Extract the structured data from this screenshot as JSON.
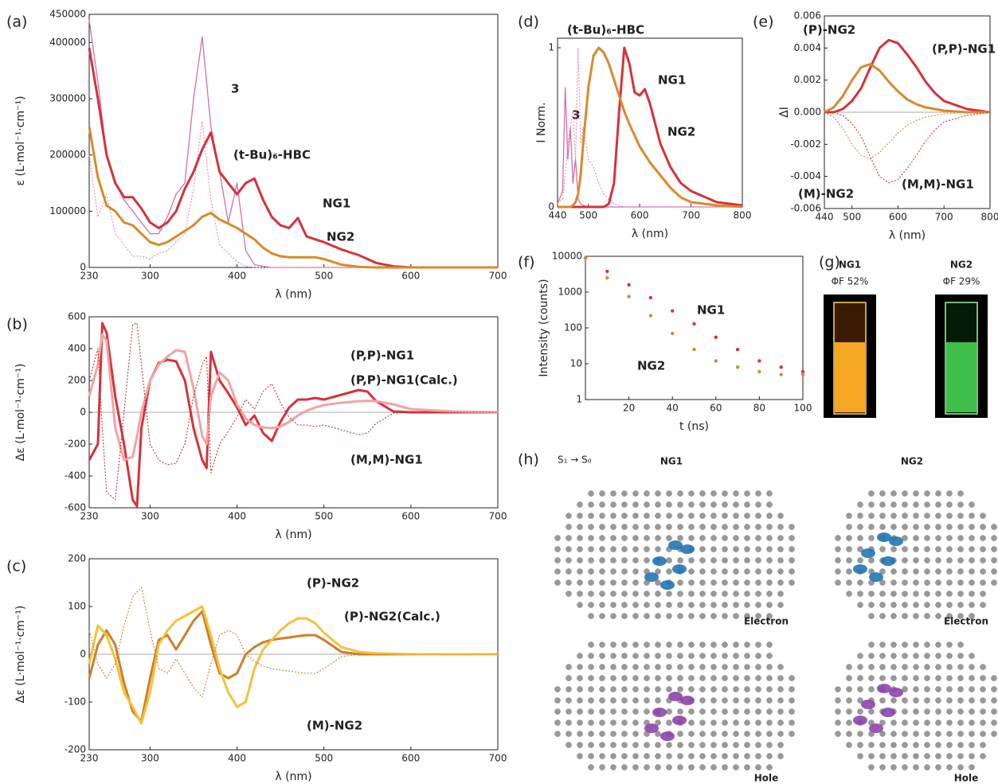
{
  "chart_data": [
    {
      "type": "line",
      "panel_label": "(a)",
      "xlabel": "λ (nm)",
      "ylabel": "ε (L·mol⁻¹·cm⁻¹)",
      "xlim": [
        230,
        700
      ],
      "xticks": [
        230,
        300,
        400,
        500,
        600,
        700
      ],
      "ylim": [
        0,
        450000
      ],
      "yticks": [
        0,
        100000,
        200000,
        300000,
        400000,
        450000
      ],
      "x": [
        230,
        240,
        250,
        260,
        270,
        280,
        290,
        300,
        310,
        320,
        330,
        340,
        350,
        360,
        370,
        380,
        390,
        400,
        410,
        420,
        430,
        440,
        450,
        460,
        470,
        480,
        490,
        500,
        520,
        540,
        560,
        580,
        600,
        700
      ],
      "series": [
        {
          "name": "3",
          "color": "#d16fa6",
          "style": "thin",
          "values": [
            440000,
            330000,
            200000,
            150000,
            120000,
            100000,
            80000,
            60000,
            60000,
            90000,
            130000,
            150000,
            300000,
            410000,
            250000,
            170000,
            80000,
            150000,
            30000,
            5000,
            2000,
            0,
            0,
            0,
            0,
            0,
            0,
            0,
            0,
            0,
            0,
            0,
            0,
            0
          ]
        },
        {
          "name": "(t-Bu)₆-HBC",
          "color": "#ea86b6",
          "style": "dotted",
          "values": [
            200000,
            90000,
            130000,
            60000,
            40000,
            20000,
            20000,
            15000,
            25000,
            30000,
            45000,
            60000,
            140000,
            260000,
            120000,
            40000,
            25000,
            10000,
            2000,
            0,
            0,
            0,
            0,
            0,
            0,
            0,
            0,
            0,
            0,
            0,
            0,
            0,
            0,
            0
          ]
        },
        {
          "name": "NG1",
          "color": "#d5323c",
          "style": "thick",
          "values": [
            390000,
            300000,
            200000,
            150000,
            125000,
            125000,
            105000,
            80000,
            70000,
            80000,
            100000,
            140000,
            170000,
            210000,
            240000,
            170000,
            150000,
            130000,
            150000,
            158000,
            120000,
            90000,
            75000,
            70000,
            88000,
            55000,
            50000,
            45000,
            32000,
            22000,
            8000,
            2000,
            0,
            0
          ]
        },
        {
          "name": "NG2",
          "color": "#d88a2c",
          "style": "thick",
          "values": [
            250000,
            160000,
            110000,
            100000,
            80000,
            75000,
            60000,
            45000,
            40000,
            45000,
            55000,
            65000,
            75000,
            90000,
            97000,
            85000,
            78000,
            70000,
            60000,
            50000,
            35000,
            25000,
            20000,
            18000,
            18000,
            18000,
            18000,
            15000,
            5000,
            1000,
            0,
            0,
            0,
            0
          ]
        }
      ]
    },
    {
      "type": "line",
      "panel_label": "(b)",
      "xlabel": "λ (nm)",
      "ylabel": "Δε (L·mol⁻¹·cm⁻¹)",
      "zero_line": true,
      "xlim": [
        230,
        700
      ],
      "xticks": [
        230,
        300,
        400,
        500,
        600,
        700
      ],
      "ylim": [
        -600,
        600
      ],
      "yticks": [
        -600,
        -400,
        -200,
        0,
        200,
        400,
        600
      ],
      "x": [
        230,
        240,
        245,
        250,
        260,
        270,
        280,
        285,
        290,
        300,
        310,
        320,
        330,
        340,
        350,
        360,
        365,
        370,
        380,
        390,
        400,
        410,
        420,
        430,
        440,
        450,
        460,
        470,
        480,
        490,
        500,
        520,
        540,
        550,
        560,
        580,
        600,
        650,
        700
      ],
      "series": [
        {
          "name": "(P,P)-NG1",
          "color": "#d5323c",
          "style": "thick",
          "values": [
            -300,
            -200,
            560,
            500,
            100,
            -200,
            -550,
            -590,
            -100,
            200,
            310,
            330,
            320,
            200,
            -100,
            -300,
            -350,
            380,
            200,
            120,
            30,
            -80,
            -20,
            -130,
            -180,
            -60,
            30,
            80,
            80,
            90,
            80,
            110,
            140,
            130,
            70,
            5,
            0,
            0,
            0
          ]
        },
        {
          "name": "(P,P)-NG1(Calc.)",
          "color": "#f2a3a3",
          "style": "thick",
          "values": [
            100,
            300,
            490,
            450,
            -100,
            -300,
            -280,
            -150,
            0,
            200,
            300,
            350,
            390,
            380,
            150,
            -150,
            -200,
            100,
            250,
            200,
            50,
            -40,
            -80,
            -95,
            -100,
            -90,
            -60,
            -20,
            10,
            30,
            45,
            60,
            70,
            72,
            70,
            50,
            20,
            5,
            0
          ]
        },
        {
          "name": "(M,M)-NG1",
          "color": "#b8323c",
          "style": "dotted",
          "values": [
            200,
            400,
            -100,
            -500,
            -550,
            0,
            550,
            560,
            300,
            -200,
            -300,
            -330,
            -320,
            -200,
            100,
            300,
            350,
            -380,
            -200,
            -120,
            -30,
            80,
            20,
            130,
            180,
            60,
            -30,
            -80,
            -80,
            -90,
            -80,
            -110,
            -140,
            -130,
            -70,
            -5,
            0,
            0,
            0
          ]
        }
      ]
    },
    {
      "type": "line",
      "panel_label": "(c)",
      "xlabel": "λ (nm)",
      "ylabel": "Δε (L·mol⁻¹·cm⁻¹)",
      "zero_line": true,
      "xlim": [
        230,
        700
      ],
      "xticks": [
        230,
        300,
        400,
        500,
        600,
        700
      ],
      "ylim": [
        -200,
        200
      ],
      "yticks": [
        -200,
        -100,
        0,
        100,
        200
      ],
      "x": [
        230,
        240,
        250,
        260,
        270,
        280,
        290,
        300,
        310,
        320,
        330,
        340,
        350,
        360,
        370,
        380,
        390,
        400,
        410,
        420,
        430,
        440,
        450,
        460,
        470,
        480,
        490,
        500,
        520,
        540,
        560,
        600,
        700
      ],
      "series": [
        {
          "name": "(P)-NG2",
          "color": "#d07e2a",
          "style": "thick",
          "values": [
            -50,
            20,
            50,
            20,
            -60,
            -120,
            -140,
            -50,
            30,
            40,
            10,
            40,
            70,
            90,
            20,
            -40,
            -50,
            -40,
            0,
            15,
            25,
            30,
            33,
            35,
            38,
            40,
            40,
            30,
            5,
            0,
            0,
            0,
            0
          ]
        },
        {
          "name": "(P)-NG2(Calc.)",
          "color": "#f2c33a",
          "style": "thick",
          "values": [
            -20,
            60,
            40,
            -10,
            -80,
            -110,
            -145,
            -80,
            20,
            50,
            70,
            80,
            90,
            100,
            40,
            -30,
            -80,
            -110,
            -100,
            -30,
            10,
            30,
            50,
            65,
            75,
            75,
            65,
            45,
            15,
            5,
            2,
            0,
            0
          ]
        },
        {
          "name": "(M)-NG2",
          "color": "#c9822f",
          "style": "dotted",
          "values": [
            50,
            -20,
            -50,
            -20,
            60,
            120,
            140,
            50,
            -30,
            -40,
            -10,
            -40,
            -70,
            -90,
            -20,
            40,
            50,
            40,
            0,
            -15,
            -25,
            -30,
            -33,
            -35,
            -38,
            -40,
            -40,
            -30,
            -5,
            0,
            0,
            0,
            0
          ]
        }
      ]
    },
    {
      "type": "line",
      "panel_label": "(d)",
      "xlabel": "λ (nm)",
      "ylabel": "I Norm.",
      "xlim": [
        440,
        800
      ],
      "xticks": [
        440,
        500,
        600,
        700,
        800
      ],
      "ylim": [
        0,
        1.06
      ],
      "yticks": [
        0,
        1
      ],
      "x": [
        440,
        450,
        455,
        460,
        465,
        470,
        475,
        480,
        485,
        490,
        500,
        510,
        520,
        530,
        540,
        550,
        560,
        570,
        580,
        590,
        600,
        610,
        620,
        640,
        660,
        680,
        700,
        750,
        800
      ],
      "series": [
        {
          "name": "3",
          "color": "#d16fa6",
          "style": "thin",
          "values": [
            0.02,
            0.1,
            0.75,
            0.3,
            0.5,
            0.15,
            0.3,
            0.05,
            0.02,
            0.01,
            0,
            0,
            0,
            0,
            0,
            0,
            0,
            0,
            0,
            0,
            0,
            0,
            0,
            0,
            0,
            0,
            0,
            0,
            0
          ]
        },
        {
          "name": "(t-Bu)₆-HBC",
          "color": "#ea86b6",
          "style": "dotted",
          "values": [
            0.02,
            0.05,
            0.2,
            0.4,
            0.5,
            0.6,
            0.3,
            1.0,
            0.4,
            0.5,
            0.3,
            0.25,
            0.15,
            0.08,
            0.05,
            0.02,
            0.01,
            0,
            0,
            0,
            0,
            0,
            0,
            0,
            0,
            0,
            0,
            0,
            0
          ]
        },
        {
          "name": "NG1",
          "color": "#d5323c",
          "style": "thick",
          "values": [
            0,
            0,
            0,
            0,
            0,
            0,
            0,
            0,
            0,
            0,
            0,
            0,
            0,
            0,
            0.02,
            0.15,
            0.6,
            1.0,
            0.9,
            0.72,
            0.7,
            0.74,
            0.65,
            0.4,
            0.25,
            0.15,
            0.1,
            0.03,
            0.01
          ]
        },
        {
          "name": "NG2",
          "color": "#d88a2c",
          "style": "thick",
          "values": [
            0,
            0,
            0,
            0,
            0,
            0.01,
            0.03,
            0.08,
            0.2,
            0.4,
            0.75,
            0.95,
            1.0,
            0.97,
            0.9,
            0.8,
            0.7,
            0.6,
            0.52,
            0.45,
            0.38,
            0.33,
            0.28,
            0.2,
            0.12,
            0.06,
            0.03,
            0.01,
            0
          ]
        }
      ]
    },
    {
      "type": "line",
      "panel_label": "(e)",
      "xlabel": "λ (nm)",
      "ylabel": "ΔI",
      "zero_line": true,
      "xlim": [
        440,
        800
      ],
      "xticks": [
        440,
        500,
        600,
        700,
        800
      ],
      "ylim": [
        -0.006,
        0.006
      ],
      "yticks": [
        -0.006,
        -0.004,
        -0.002,
        {
          "value": 0,
          "label": "0.000"
        },
        0.002,
        0.004,
        0.006
      ],
      "x": [
        440,
        460,
        480,
        500,
        520,
        540,
        560,
        580,
        600,
        620,
        640,
        660,
        680,
        700,
        750,
        800
      ],
      "series": [
        {
          "name": "(P,P)-NG1",
          "color": "#d5323c",
          "style": "thick",
          "values": [
            0,
            0,
            0.0002,
            0.0007,
            0.0015,
            0.0028,
            0.004,
            0.0045,
            0.0043,
            0.0036,
            0.0028,
            0.0019,
            0.0012,
            0.0007,
            0.0002,
            0
          ]
        },
        {
          "name": "(P)-NG2",
          "color": "#d88a2c",
          "style": "thick",
          "values": [
            0,
            0.0003,
            0.001,
            0.002,
            0.0028,
            0.003,
            0.0026,
            0.0019,
            0.0013,
            0.0008,
            0.0005,
            0.0003,
            0.0002,
            0.0001,
            0,
            0
          ]
        },
        {
          "name": "(M)-NG2",
          "color": "#d88a2c",
          "style": "dotted",
          "values": [
            0,
            -0.0003,
            -0.001,
            -0.002,
            -0.0027,
            -0.0029,
            -0.0025,
            -0.0019,
            -0.0013,
            -0.0008,
            -0.0005,
            -0.0003,
            -0.0002,
            -0.0001,
            0,
            0
          ]
        },
        {
          "name": "(M,M)-NG1",
          "color": "#d5323c",
          "style": "dotted",
          "values": [
            0,
            0,
            -0.0002,
            -0.0007,
            -0.0015,
            -0.0028,
            -0.004,
            -0.0044,
            -0.0042,
            -0.0035,
            -0.0027,
            -0.0018,
            -0.0011,
            -0.0006,
            -0.0002,
            0
          ]
        }
      ]
    },
    {
      "type": "scatter",
      "panel_label": "(f)",
      "xlabel": "t (ns)",
      "ylabel": "Intensity (counts)",
      "log_y": true,
      "xlim": [
        0,
        100
      ],
      "xticks": [
        20,
        40,
        60,
        80,
        100
      ],
      "ylim": [
        1,
        10000
      ],
      "yticks": [
        1,
        10,
        100,
        1000,
        10000
      ],
      "x": [
        0,
        10,
        20,
        30,
        40,
        50,
        60,
        70,
        80,
        90,
        100
      ],
      "series": [
        {
          "name": "NG1",
          "color": "#d5323c",
          "values": [
            9000,
            3800,
            1600,
            700,
            300,
            130,
            55,
            25,
            12,
            8,
            6
          ]
        },
        {
          "name": "NG2",
          "color": "#d88a2c",
          "values": [
            9000,
            2500,
            750,
            220,
            70,
            25,
            12,
            8,
            6,
            5,
            5
          ]
        }
      ]
    }
  ],
  "photos": {
    "panel_label": "(g)",
    "items": [
      {
        "name": "NG1",
        "yield": "ΦF 52%"
      },
      {
        "name": "NG2",
        "yield": "ΦF 29%"
      }
    ]
  },
  "orbitals": {
    "panel_label": "(h)",
    "transition": "S₁ → S₀",
    "molecules": [
      {
        "name": "NG1",
        "electron": "Electron",
        "hole": "Hole"
      },
      {
        "name": "NG2",
        "electron": "Electron",
        "hole": "Hole"
      }
    ]
  }
}
